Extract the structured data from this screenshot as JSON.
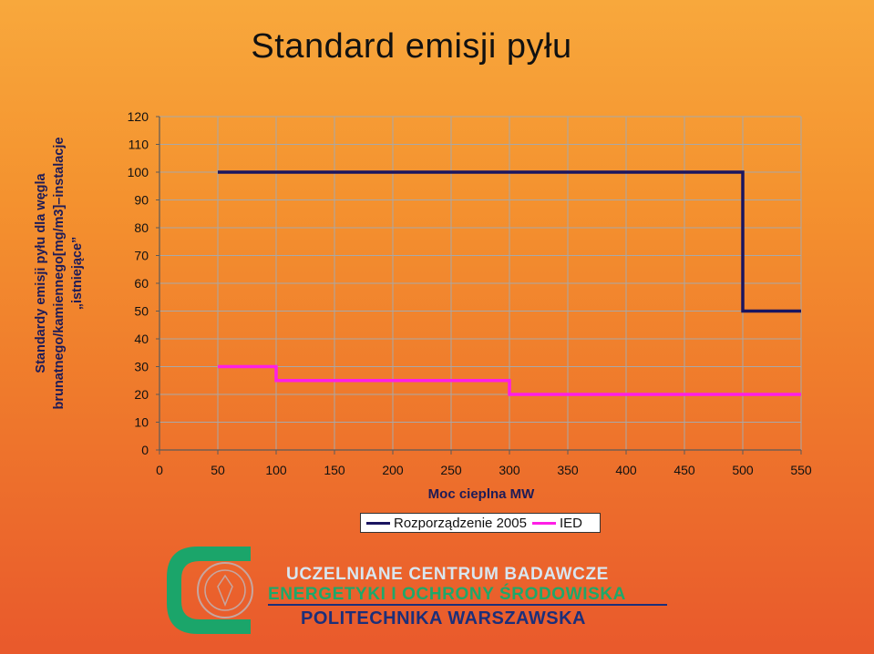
{
  "title": "Standard emisji pyłu",
  "footer": {
    "line1": "UCZELNIANE CENTRUM BADAWCZE",
    "line2": "ENERGETYKI I OCHRONY ŚRODOWISKA",
    "line3": "POLITECHNIKA WARSZAWSKA"
  },
  "colors": {
    "series1": "#1a1560",
    "series2": "#ff1ee6",
    "grid": "#a8a8a8",
    "axis": "#5a5a5a"
  },
  "chart_data": {
    "type": "line",
    "title": "Standard emisji pyłu",
    "xlabel": "Moc cieplna MW",
    "ylabel_lines": [
      "Standardy emisji pyłu dla węgla",
      "brunatnego/kamiennego[mg/m3]–instalacje",
      "„istniejące”"
    ],
    "xlim": [
      0,
      550
    ],
    "ylim": [
      0,
      120
    ],
    "x_ticks": [
      0,
      50,
      100,
      150,
      200,
      250,
      300,
      350,
      400,
      450,
      500,
      550
    ],
    "y_ticks": [
      0,
      10,
      20,
      30,
      40,
      50,
      60,
      70,
      80,
      90,
      100,
      110,
      120
    ],
    "grid": true,
    "legend_position": "bottom",
    "series": [
      {
        "name": "Rozporządzenie 2005",
        "color": "#1a1560",
        "step": true,
        "points": [
          [
            50,
            100
          ],
          [
            500,
            100
          ],
          [
            500,
            50
          ],
          [
            550,
            50
          ]
        ]
      },
      {
        "name": "IED",
        "color": "#ff1ee6",
        "step": true,
        "points": [
          [
            50,
            30
          ],
          [
            100,
            30
          ],
          [
            100,
            25
          ],
          [
            300,
            25
          ],
          [
            300,
            20
          ],
          [
            550,
            20
          ]
        ]
      }
    ]
  }
}
